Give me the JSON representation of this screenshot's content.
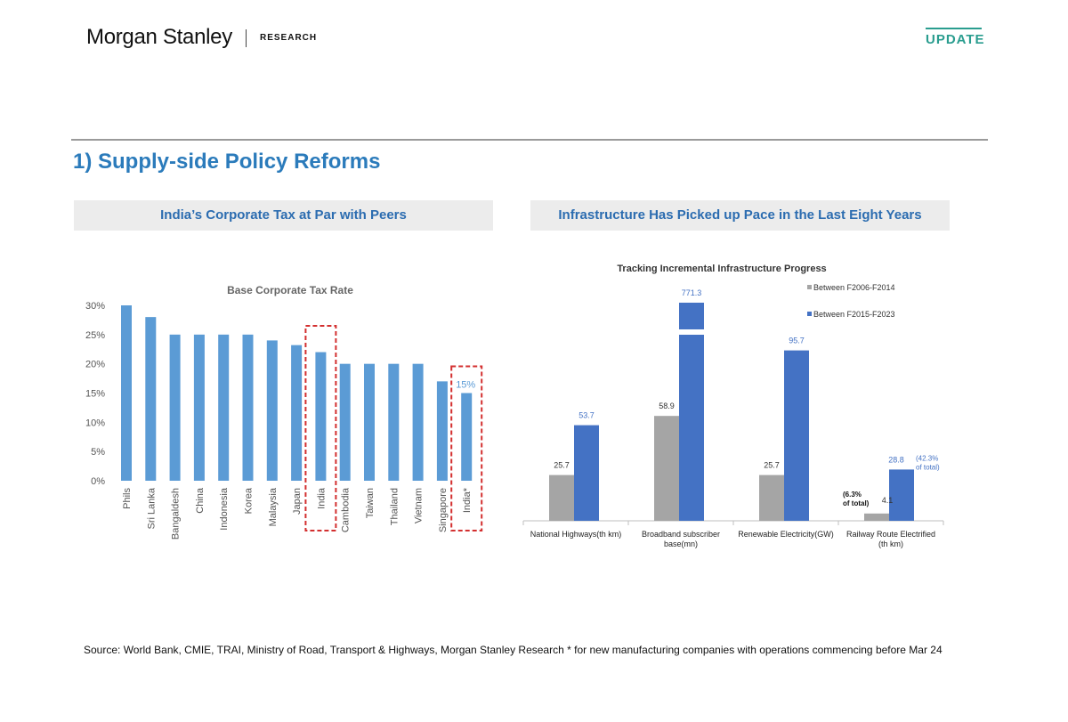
{
  "header": {
    "brand": "Morgan Stanley",
    "brand_sub": "RESEARCH",
    "update": "UPDATE"
  },
  "section_title": "1) Supply-side Policy Reforms",
  "panels": {
    "left_title": "India’s Corporate Tax at Par with Peers",
    "right_title": "Infrastructure Has Picked up Pace in the Last  Eight Years"
  },
  "source": "Source: World Bank, CMIE, TRAI, Ministry of Road, Transport & Highways, Morgan Stanley Research * for new manufacturing companies with operations commencing before Mar 24",
  "colors": {
    "bar_blue": "#5b9bd5",
    "series_grey": "#a5a5a5",
    "series_blue": "#4472c4",
    "highlight_red": "#d32f2f",
    "accent": "#2a9d8f",
    "title_blue": "#2b7bbb"
  },
  "chart_data": [
    {
      "type": "bar",
      "title": "Base Corporate Tax Rate",
      "categories": [
        "Phils",
        "Sri Lanka",
        "Bangaldesh",
        "China",
        "Indonesia",
        "Korea",
        "Malaysia",
        "Japan",
        "India",
        "Cambodia",
        "Taiwan",
        "Thailand",
        "Vietnam",
        "Singapore",
        "India*"
      ],
      "values": [
        30,
        28,
        25,
        25,
        25,
        25,
        24,
        23.2,
        22,
        20,
        20,
        20,
        20,
        17,
        15
      ],
      "ylim": [
        0,
        30
      ],
      "yticks": [
        "0%",
        "5%",
        "10%",
        "15%",
        "20%",
        "25%",
        "30%"
      ],
      "highlighted": [
        "India",
        "India*"
      ],
      "annotation": "15%"
    },
    {
      "type": "bar",
      "title": "Tracking Incremental Infrastructure Progress",
      "categories": [
        "National Highways(th km)",
        "Broadband subscriber base(mn)",
        "Renewable Electricity(GW)",
        "Railway Route Electrified (th km)"
      ],
      "series": [
        {
          "name": "Between F2006-F2014",
          "values": [
            25.7,
            58.9,
            25.7,
            4.1
          ],
          "labels": [
            "25.7",
            "58.9",
            "25.7",
            "4.1"
          ]
        },
        {
          "name": "Between F2015-F2023",
          "values": [
            53.7,
            771.3,
            95.7,
            28.8
          ],
          "labels": [
            "53.7",
            "771.3",
            "95.7",
            "28.8"
          ]
        }
      ],
      "axis_break": "Broadband subscriber base(mn)",
      "annotations": {
        "grey_share": "(6.3% of total)",
        "blue_share": "(42.3% of total)"
      }
    }
  ]
}
